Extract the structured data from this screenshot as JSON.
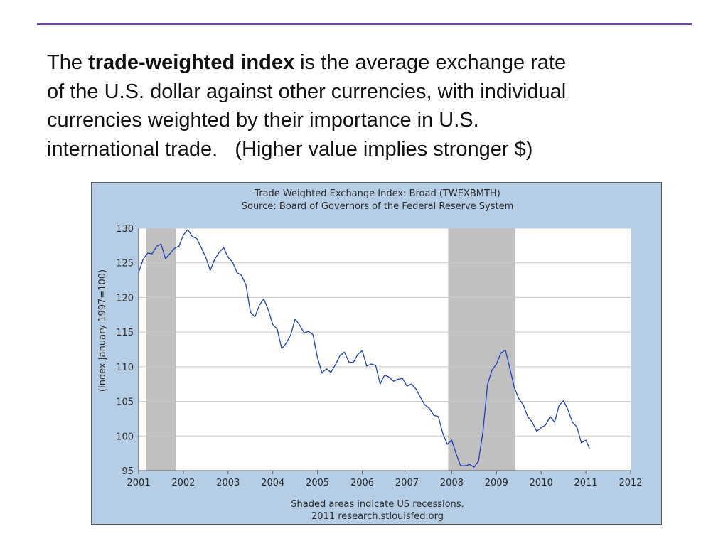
{
  "slide": {
    "line1_pre": "The ",
    "line1_bold": "trade-weighted index",
    "line1_post": " is the average exchange rate",
    "line2": "of the U.S. dollar against other currencies, with individual",
    "line3": "currencies weighted by their importance in U.S.",
    "line4": "international trade.   (Higher value implies stronger $)"
  },
  "colors": {
    "rule": "#6a4a9a",
    "chart_background": "#b5cee6",
    "plot_background": "#ffffff",
    "recession_shade": "#c0c0c0",
    "series_line": "#1f3ec0",
    "grid": "#c8c8c8"
  },
  "chart_data": {
    "type": "line",
    "title": "Trade Weighted Exchange Index: Broad (TWEXBMTH)",
    "subtitle": "Source: Board of Governors of the Federal Reserve System",
    "xlabel": "",
    "ylabel": "(Index January 1997=100)",
    "xlim": [
      2001,
      2012
    ],
    "ylim": [
      95,
      130
    ],
    "x_ticks": [
      "2001",
      "2002",
      "2003",
      "2004",
      "2005",
      "2006",
      "2007",
      "2008",
      "2009",
      "2010",
      "2011",
      "2012"
    ],
    "y_ticks": [
      "95",
      "100",
      "105",
      "110",
      "115",
      "120",
      "125",
      "130"
    ],
    "grid": "horizontal",
    "footnote_line1": "Shaded areas indicate US recessions.",
    "footnote_line2": "2011 research.stlouisfed.org",
    "recessions": [
      [
        2001.17,
        2001.83
      ],
      [
        2007.92,
        2009.42
      ]
    ],
    "series": [
      {
        "x": [
          2001.0,
          2001.1,
          2001.2,
          2001.3,
          2001.4,
          2001.5,
          2001.6,
          2001.7,
          2001.8,
          2001.9,
          2002.0,
          2002.1,
          2002.2,
          2002.3,
          2002.4,
          2002.5,
          2002.6,
          2002.7,
          2002.8,
          2002.9,
          2003.0,
          2003.1,
          2003.2,
          2003.3,
          2003.4,
          2003.5,
          2003.6,
          2003.7,
          2003.8,
          2003.9,
          2004.0,
          2004.1,
          2004.2,
          2004.3,
          2004.4,
          2004.5,
          2004.6,
          2004.7,
          2004.8,
          2004.9,
          2005.0,
          2005.1,
          2005.2,
          2005.3,
          2005.4,
          2005.5,
          2005.6,
          2005.7,
          2005.8,
          2005.9,
          2006.0,
          2006.1,
          2006.2,
          2006.3,
          2006.4,
          2006.5,
          2006.6,
          2006.7,
          2006.8,
          2006.9,
          2007.0,
          2007.1,
          2007.2,
          2007.3,
          2007.4,
          2007.5,
          2007.6,
          2007.7,
          2007.8,
          2007.9,
          2008.0,
          2008.1,
          2008.2,
          2008.3,
          2008.4,
          2008.5,
          2008.6,
          2008.7,
          2008.8,
          2008.9,
          2009.0,
          2009.1,
          2009.2,
          2009.3,
          2009.4,
          2009.5,
          2009.6,
          2009.7,
          2009.8,
          2009.9,
          2010.0,
          2010.1,
          2010.2,
          2010.3,
          2010.4,
          2010.5,
          2010.6,
          2010.7,
          2010.8,
          2010.9,
          2011.0,
          2011.08
        ],
        "values": [
          123.6,
          125.5,
          126.4,
          126.3,
          127.4,
          127.7,
          125.6,
          126.3,
          127.1,
          127.4,
          129.0,
          129.8,
          128.8,
          128.5,
          127.2,
          125.8,
          123.9,
          125.5,
          126.5,
          127.2,
          125.8,
          125.1,
          123.6,
          123.2,
          121.8,
          117.9,
          117.2,
          118.9,
          119.8,
          118.2,
          116.1,
          115.4,
          112.6,
          113.4,
          114.6,
          116.9,
          116.0,
          114.9,
          115.1,
          114.6,
          111.3,
          109.1,
          109.7,
          109.2,
          110.3,
          111.6,
          112.1,
          110.7,
          110.6,
          111.8,
          112.3,
          110.1,
          110.4,
          110.2,
          107.5,
          108.8,
          108.5,
          107.9,
          108.2,
          108.3,
          107.2,
          107.5,
          106.8,
          105.6,
          104.5,
          104.0,
          103.0,
          102.8,
          100.4,
          98.8,
          99.4,
          97.4,
          95.7,
          95.7,
          95.9,
          95.5,
          96.4,
          100.7,
          107.4,
          109.5,
          110.4,
          112.0,
          112.4,
          109.8,
          107.0,
          105.4,
          104.5,
          102.8,
          102.0,
          100.7,
          101.2,
          101.6,
          102.8,
          102.0,
          104.4,
          105.1,
          103.8,
          102.0,
          101.3,
          99.0,
          99.4,
          98.2
        ]
      }
    ]
  }
}
